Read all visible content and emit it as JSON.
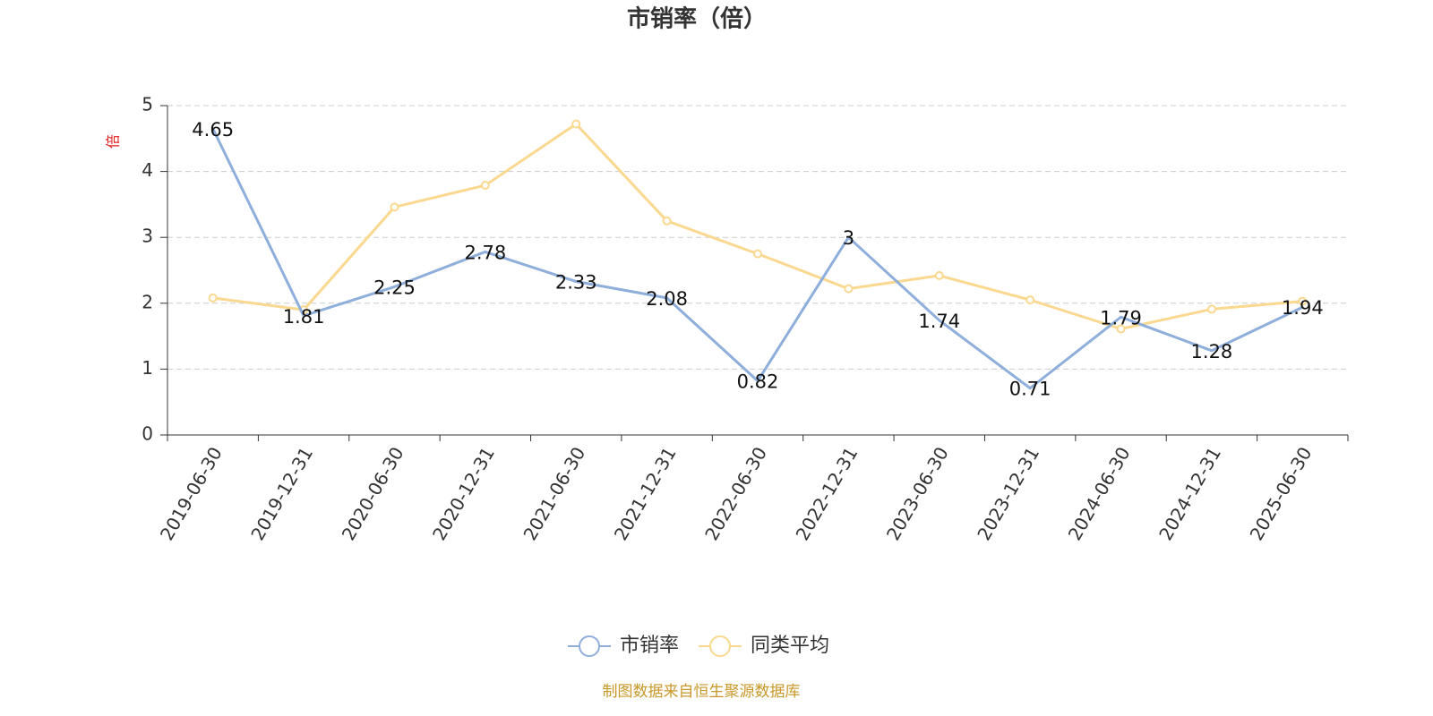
{
  "chart_data": {
    "type": "line",
    "title": "市销率（倍）",
    "y_label": "倍",
    "categories": [
      "2019-06-30",
      "2019-12-31",
      "2020-06-30",
      "2020-12-31",
      "2021-06-30",
      "2021-12-31",
      "2022-06-30",
      "2022-12-31",
      "2023-06-30",
      "2023-12-31",
      "2024-06-30",
      "2024-12-31",
      "2025-06-30"
    ],
    "series": [
      {
        "name": "市销率",
        "color": "#8eaedb",
        "values": [
          4.65,
          1.81,
          2.25,
          2.78,
          2.33,
          2.08,
          0.82,
          3,
          1.74,
          0.71,
          1.79,
          1.28,
          1.94
        ]
      },
      {
        "name": "同类平均",
        "color": "#fad88f",
        "values": [
          2.08,
          1.9,
          3.46,
          3.79,
          4.72,
          3.25,
          2.75,
          2.22,
          2.42,
          2.05,
          1.61,
          1.91,
          2.03
        ]
      }
    ],
    "ylim": [
      0,
      5
    ],
    "yticks": [
      0,
      1,
      2,
      3,
      4,
      5
    ],
    "grid": true,
    "source": "制图数据来自恒生聚源数据库"
  }
}
